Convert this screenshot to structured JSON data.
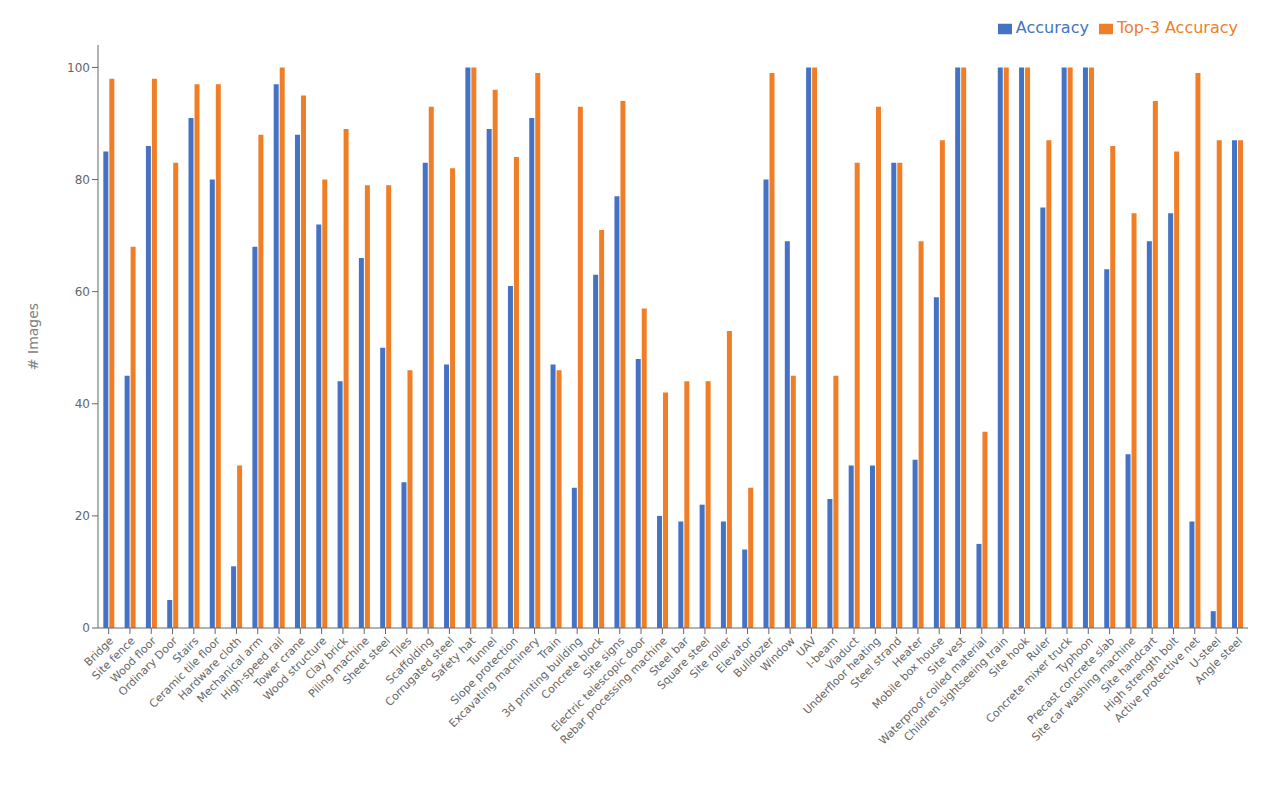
{
  "chart_data": {
    "type": "bar",
    "categories": [
      "Bridge",
      "Site fence",
      "Wood floor",
      "Ordinary Door",
      "Stairs",
      "Ceramic tile floor",
      "Hardware cloth",
      "Mechanical arm",
      "High-speed rail",
      "Tower crane",
      "Wood structure",
      "Clay brick",
      "Piling machine",
      "Sheet steel",
      "Tiles",
      "Scaffolding",
      "Corrugated steel",
      "Safety hat",
      "Tunnel",
      "Slope protection",
      "Excavating machinery",
      "Train",
      "3d printing building",
      "Concrete block",
      "Site signs",
      "Electric telescopic door",
      "Rebar processing machine",
      "Steel bar",
      "Square steel",
      "Site roller",
      "Elevator",
      "Bulldozer",
      "Window",
      "UAV",
      "I-beam",
      "Viaduct",
      "Underfloor heating",
      "Steel strand",
      "Heater",
      "Mobile box house",
      "Site vest",
      "Waterproof coiled material",
      "Children sightseeing train",
      "Site hook",
      "Ruler",
      "Concrete mixer truck",
      "Typhoon",
      "Precast concrete slab",
      "Site car washing machine",
      "Site handcart",
      "High strength bolt",
      "Active protective net",
      "U-steel",
      "Angle steel"
    ],
    "series": [
      {
        "name": "Accuracy",
        "color": "#4472c4",
        "values": [
          85,
          45,
          86,
          5,
          91,
          80,
          11,
          68,
          97,
          88,
          72,
          44,
          66,
          50,
          26,
          83,
          47,
          100,
          89,
          61,
          91,
          47,
          25,
          63,
          77,
          48,
          20,
          19,
          22,
          19,
          14,
          80,
          69,
          100,
          23,
          29,
          29,
          83,
          30,
          59,
          100,
          15,
          100,
          100,
          75,
          100,
          100,
          64,
          31,
          69,
          74,
          19,
          3,
          87
        ]
      },
      {
        "name": "Top-3 Accuracy",
        "color": "#f07e27",
        "values": [
          98,
          68,
          98,
          83,
          97,
          97,
          29,
          88,
          100,
          95,
          80,
          89,
          79,
          79,
          46,
          93,
          82,
          100,
          96,
          84,
          99,
          46,
          93,
          71,
          94,
          57,
          42,
          44,
          44,
          53,
          25,
          99,
          45,
          100,
          45,
          83,
          93,
          83,
          69,
          87,
          100,
          35,
          100,
          100,
          87,
          100,
          100,
          86,
          74,
          94,
          85,
          99,
          87,
          87
        ]
      }
    ],
    "ylabel": "# Images",
    "ylim": [
      0,
      104
    ],
    "yticks": [
      0,
      20,
      40,
      60,
      80,
      100
    ],
    "grid": false,
    "legend": "upper right"
  }
}
